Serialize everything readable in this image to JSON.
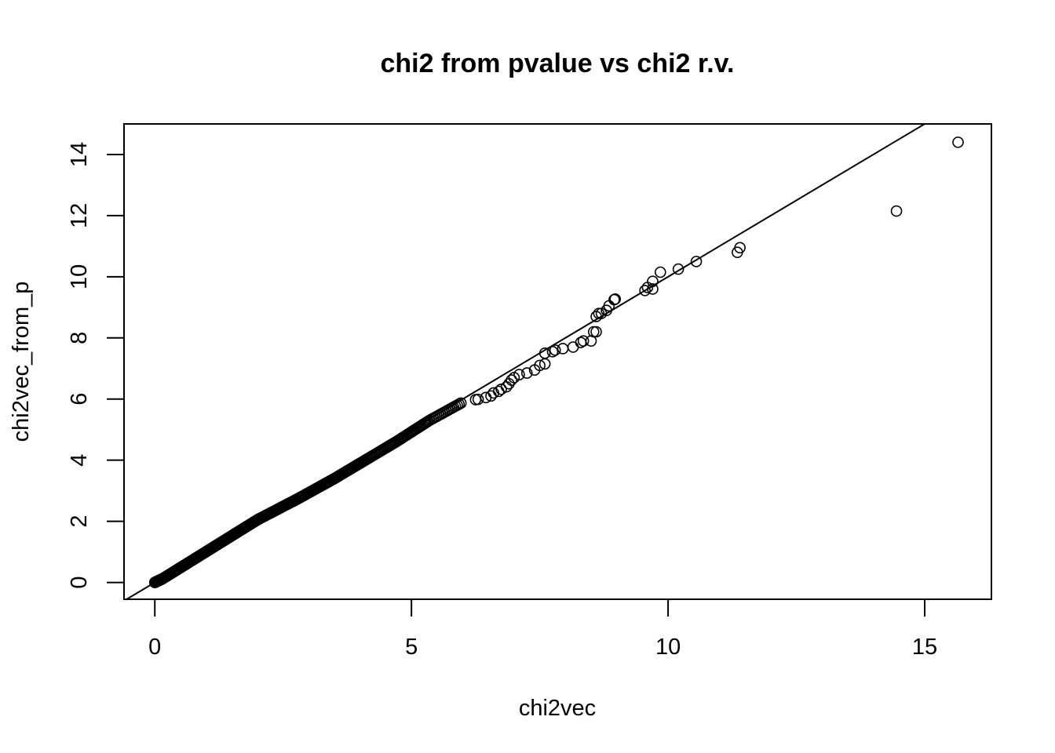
{
  "chart_data": {
    "type": "scatter",
    "title": "chi2 from pvalue vs chi2 r.v.",
    "xlabel": "chi2vec",
    "ylabel": "chi2vec_from_p",
    "xlim": [
      -0.6,
      16.3
    ],
    "ylim": [
      -0.55,
      15.0
    ],
    "xticks": [
      0,
      5,
      10,
      15
    ],
    "yticks": [
      0,
      2,
      4,
      6,
      8,
      10,
      12,
      14
    ],
    "reference_line": {
      "intercept": 0,
      "slope": 1
    },
    "grid": false,
    "legend": "none",
    "colors": {
      "points": "#000000",
      "line": "#000000",
      "background": "#ffffff"
    },
    "dense_segments": [
      {
        "x0": 0.0,
        "y0": 0.0,
        "x1": 0.15,
        "y1": 0.12,
        "n": 20
      },
      {
        "x0": 0.15,
        "y0": 0.12,
        "x1": 2.0,
        "y1": 2.05,
        "n": 130
      },
      {
        "x0": 2.0,
        "y0": 2.05,
        "x1": 2.8,
        "y1": 2.75,
        "n": 45
      },
      {
        "x0": 2.8,
        "y0": 2.75,
        "x1": 3.5,
        "y1": 3.4,
        "n": 35
      },
      {
        "x0": 3.5,
        "y0": 3.4,
        "x1": 4.1,
        "y1": 4.0,
        "n": 30
      },
      {
        "x0": 4.1,
        "y0": 4.0,
        "x1": 4.7,
        "y1": 4.6,
        "n": 25
      },
      {
        "x0": 4.7,
        "y0": 4.6,
        "x1": 5.35,
        "y1": 5.3,
        "n": 25
      },
      {
        "x0": 5.35,
        "y0": 5.3,
        "x1": 6.0,
        "y1": 5.9,
        "n": 18
      }
    ],
    "points": [
      [
        0,
        0
      ],
      [
        0.02,
        0.01
      ],
      [
        0.04,
        0.03
      ],
      [
        0.06,
        0.05
      ],
      [
        0.08,
        0.07
      ],
      [
        6.25,
        5.98
      ],
      [
        6.3,
        5.99
      ],
      [
        6.45,
        6.05
      ],
      [
        6.55,
        6.1
      ],
      [
        6.6,
        6.2
      ],
      [
        6.7,
        6.25
      ],
      [
        6.75,
        6.32
      ],
      [
        6.85,
        6.4
      ],
      [
        6.9,
        6.5
      ],
      [
        6.95,
        6.62
      ],
      [
        7.0,
        6.7
      ],
      [
        7.1,
        6.8
      ],
      [
        7.25,
        6.85
      ],
      [
        7.4,
        6.95
      ],
      [
        7.5,
        7.1
      ],
      [
        7.6,
        7.15
      ],
      [
        7.6,
        7.5
      ],
      [
        7.75,
        7.55
      ],
      [
        7.8,
        7.6
      ],
      [
        7.95,
        7.65
      ],
      [
        8.15,
        7.7
      ],
      [
        8.3,
        7.85
      ],
      [
        8.35,
        7.9
      ],
      [
        8.5,
        7.9
      ],
      [
        8.55,
        8.2
      ],
      [
        8.6,
        8.2
      ],
      [
        8.6,
        8.7
      ],
      [
        8.65,
        8.8
      ],
      [
        8.7,
        8.8
      ],
      [
        8.8,
        8.9
      ],
      [
        8.85,
        9.05
      ],
      [
        8.95,
        9.25
      ],
      [
        8.97,
        9.27
      ],
      [
        9.55,
        9.55
      ],
      [
        9.6,
        9.65
      ],
      [
        9.7,
        9.6
      ],
      [
        9.7,
        9.85
      ],
      [
        9.85,
        10.15
      ],
      [
        10.2,
        10.25
      ],
      [
        10.55,
        10.5
      ],
      [
        11.35,
        10.8
      ],
      [
        11.4,
        10.95
      ],
      [
        14.45,
        12.15
      ],
      [
        15.65,
        14.4
      ]
    ]
  }
}
